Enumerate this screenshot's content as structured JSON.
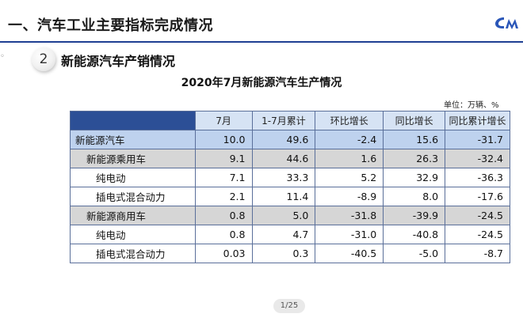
{
  "slide": {
    "title": "一、汽车工业主要指标完成情况",
    "logo_text": "CM",
    "section": {
      "number": "2",
      "title": "新能源汽车产销情况"
    }
  },
  "table": {
    "title": "2020年7月新能源汽车生产情况",
    "unit": "单位：万辆、%",
    "headers": [
      "",
      "7月",
      "1-7月累计",
      "环比增长",
      "同比增长",
      "同比累计增长"
    ],
    "rows": [
      {
        "level": 0,
        "name": "新能源汽车",
        "values": [
          "10.0",
          "49.6",
          "-2.4",
          "15.6",
          "-31.7"
        ]
      },
      {
        "level": 1,
        "name": "新能源乘用车",
        "values": [
          "9.1",
          "44.6",
          "1.6",
          "26.3",
          "-32.4"
        ]
      },
      {
        "level": 2,
        "name": "纯电动",
        "values": [
          "7.1",
          "33.3",
          "5.2",
          "32.9",
          "-36.3"
        ]
      },
      {
        "level": 2,
        "name": "插电式混合动力",
        "values": [
          "2.1",
          "11.4",
          "-8.9",
          "8.0",
          "-17.6"
        ]
      },
      {
        "level": 1,
        "name": "新能源商用车",
        "values": [
          "0.8",
          "5.0",
          "-31.8",
          "-39.9",
          "-24.5"
        ]
      },
      {
        "level": 2,
        "name": "纯电动",
        "values": [
          "0.8",
          "4.7",
          "-31.0",
          "-40.8",
          "-24.5"
        ]
      },
      {
        "level": 2,
        "name": "插电式混合动力",
        "values": [
          "0.03",
          "0.3",
          "-40.5",
          "-5.0",
          "-8.7"
        ]
      }
    ]
  },
  "pager": {
    "label": "1/25"
  },
  "colors": {
    "accent": "#1f3f93",
    "header_corner": "#2c4f96",
    "header_bg": "#d6e3f4",
    "total_row": "#bed2ee",
    "sub_row": "#d6d6d6"
  }
}
